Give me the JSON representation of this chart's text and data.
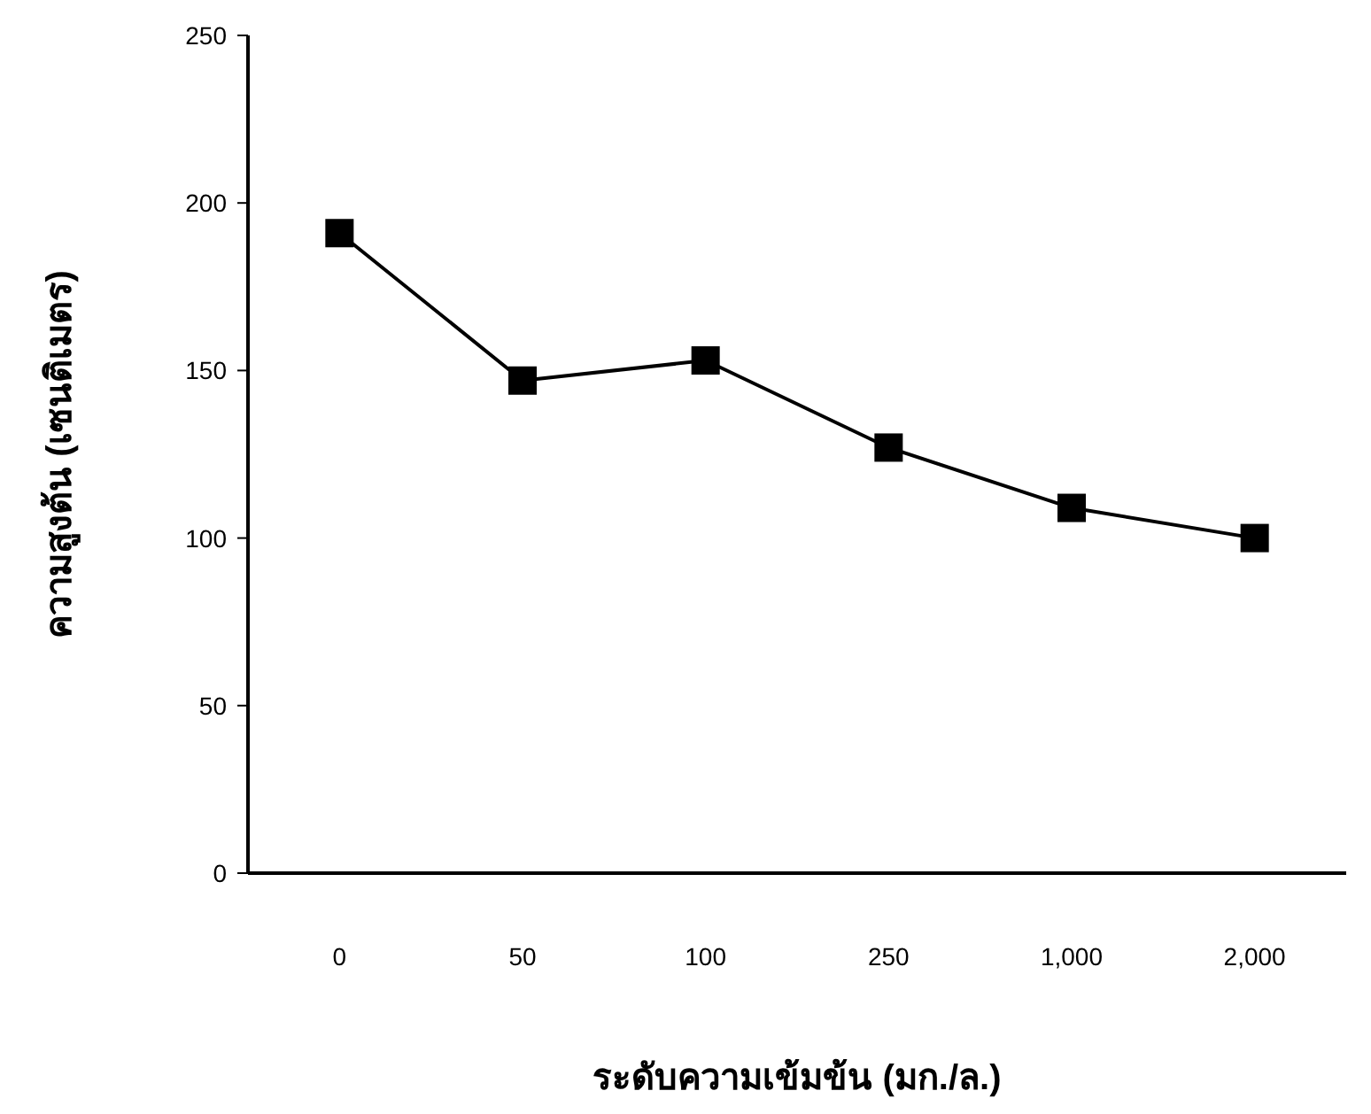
{
  "chart_data": {
    "type": "line",
    "xlabel": "ระดับความเข้มข้น (มก./ล.)",
    "ylabel": "ความสูงต้น (เซนติเมตร)",
    "categories": [
      "0",
      "50",
      "100",
      "250",
      "1,000",
      "2,000"
    ],
    "series": [
      {
        "color": "#000000",
        "values": [
          191,
          147,
          153,
          127,
          109,
          100
        ]
      }
    ],
    "ylim": [
      0,
      250
    ],
    "yticks": [
      0,
      50,
      100,
      150,
      200,
      250
    ],
    "marker": "square",
    "line_style": "solid",
    "grid": false
  }
}
